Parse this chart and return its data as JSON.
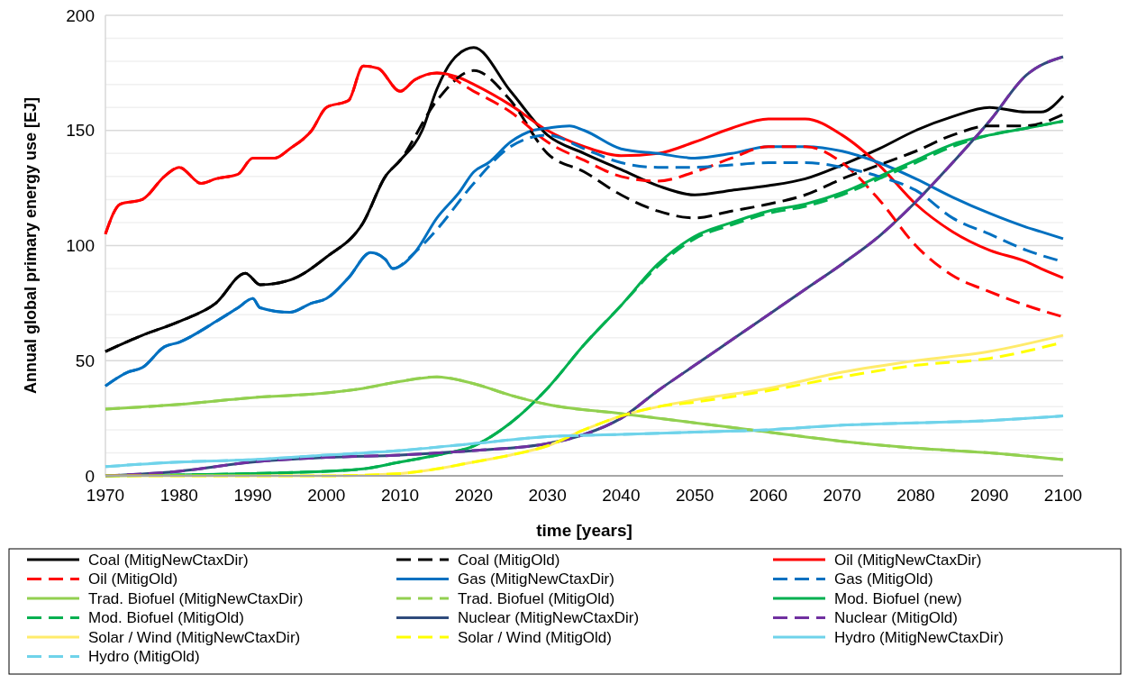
{
  "chart_data": {
    "type": "line",
    "xlabel": "time [years]",
    "ylabel": "Annual global primary energy use [EJ]",
    "xlim": [
      1970,
      2100
    ],
    "xticks": [
      1970,
      1980,
      1990,
      2000,
      2010,
      2020,
      2030,
      2040,
      2050,
      2060,
      2070,
      2080,
      2090,
      2100
    ],
    "ylim": [
      0,
      200
    ],
    "yticks": [
      0,
      {
        "value": 10,
        "label": null
      },
      {
        "value": 20,
        "label": null
      },
      {
        "value": 30,
        "label": null
      },
      {
        "value": 40,
        "label": null
      },
      50,
      {
        "value": 60,
        "label": null
      },
      {
        "value": 70,
        "label": null
      },
      {
        "value": 80,
        "label": null
      },
      {
        "value": 90,
        "label": null
      },
      100,
      {
        "value": 110,
        "label": null
      },
      {
        "value": 120,
        "label": null
      },
      {
        "value": 130,
        "label": null
      },
      {
        "value": 140,
        "label": null
      },
      150,
      {
        "value": 160,
        "label": null
      },
      {
        "value": 170,
        "label": null
      },
      {
        "value": 180,
        "label": null
      },
      {
        "value": 190,
        "label": null
      },
      200
    ],
    "grid": "y",
    "legend": "bottom",
    "series": [
      {
        "name": "Coal (MitigNewCtaxDir)",
        "color": "#000000",
        "line_style": "solid",
        "x": [
          1970,
          1975,
          1980,
          1985,
          1989,
          1991,
          1995,
          2000,
          2005,
          2008,
          2010,
          2013,
          2015,
          2017,
          2020,
          2025,
          2030,
          2035,
          2040,
          2045,
          2050,
          2055,
          2060,
          2065,
          2070,
          2075,
          2080,
          2085,
          2090,
          2095,
          2097,
          2100
        ],
        "values": [
          54,
          61,
          67,
          75,
          88,
          83,
          85,
          95,
          110,
          130,
          137,
          150,
          168,
          180,
          186,
          167,
          148,
          140,
          133,
          126,
          122,
          124,
          126,
          129,
          135,
          142,
          150,
          156,
          160,
          158,
          158,
          165
        ]
      },
      {
        "name": "Coal (MitigOld)",
        "color": "#000000",
        "line_style": "dashed",
        "x": [
          1970,
          1975,
          1980,
          1985,
          1989,
          1991,
          1995,
          2000,
          2005,
          2008,
          2010,
          2015,
          2020,
          2025,
          2030,
          2035,
          2040,
          2045,
          2050,
          2055,
          2060,
          2065,
          2070,
          2075,
          2080,
          2085,
          2090,
          2095,
          2100
        ],
        "values": [
          54,
          61,
          67,
          75,
          88,
          83,
          85,
          95,
          110,
          130,
          137,
          163,
          176,
          163,
          140,
          132,
          122,
          115,
          112,
          115,
          118,
          122,
          129,
          135,
          141,
          148,
          152,
          152,
          157
        ]
      },
      {
        "name": "Oil (MitigNewCtaxDir)",
        "color": "#ff0000",
        "line_style": "solid",
        "x": [
          1970,
          1972,
          1975,
          1978,
          1980,
          1983,
          1985,
          1988,
          1990,
          1993,
          1995,
          1998,
          2000,
          2003,
          2005,
          2007,
          2010,
          2012,
          2015,
          2018,
          2020,
          2025,
          2030,
          2035,
          2040,
          2045,
          2050,
          2055,
          2060,
          2065,
          2070,
          2075,
          2080,
          2085,
          2090,
          2095,
          2097,
          2100
        ],
        "values": [
          105,
          118,
          120,
          130,
          134,
          127,
          129,
          131,
          138,
          138,
          142,
          150,
          160,
          163,
          178,
          177,
          167,
          172,
          175,
          173,
          170,
          161,
          150,
          143,
          139,
          140,
          145,
          151,
          155,
          155,
          148,
          135,
          118,
          106,
          98,
          93,
          90,
          86
        ]
      },
      {
        "name": "Oil (MitigOld)",
        "color": "#ff0000",
        "line_style": "dashed",
        "x": [
          1970,
          1972,
          1975,
          1978,
          1980,
          1983,
          1985,
          1988,
          1990,
          1993,
          1995,
          1998,
          2000,
          2003,
          2005,
          2007,
          2010,
          2012,
          2015,
          2020,
          2025,
          2030,
          2035,
          2040,
          2045,
          2050,
          2055,
          2060,
          2065,
          2070,
          2075,
          2080,
          2085,
          2090,
          2095,
          2100
        ],
        "values": [
          105,
          118,
          120,
          130,
          134,
          127,
          129,
          131,
          138,
          138,
          142,
          150,
          160,
          163,
          178,
          177,
          167,
          172,
          175,
          167,
          158,
          145,
          137,
          130,
          128,
          132,
          138,
          143,
          143,
          136,
          120,
          100,
          87,
          80,
          74,
          69
        ]
      },
      {
        "name": "Gas (MitigNewCtaxDir)",
        "color": "#0070c0",
        "line_style": "solid",
        "x": [
          1970,
          1973,
          1975,
          1978,
          1980,
          1985,
          1988,
          1990,
          1991,
          1995,
          1998,
          2000,
          2003,
          2006,
          2008,
          2009,
          2012,
          2015,
          2018,
          2020,
          2022,
          2025,
          2028,
          2030,
          2033,
          2035,
          2040,
          2045,
          2050,
          2055,
          2060,
          2065,
          2070,
          2075,
          2080,
          2085,
          2090,
          2095,
          2097,
          2100
        ],
        "values": [
          39,
          45,
          47,
          56,
          58,
          67,
          73,
          77,
          73,
          71,
          75,
          77,
          86,
          97,
          94,
          90,
          97,
          112,
          123,
          132,
          136,
          145,
          150,
          151,
          152,
          150,
          142,
          140,
          138,
          140,
          143,
          143,
          141,
          136,
          129,
          121,
          114,
          108,
          106,
          103
        ]
      },
      {
        "name": "Gas (MitigOld)",
        "color": "#0070c0",
        "line_style": "dashed",
        "x": [
          1970,
          1973,
          1975,
          1978,
          1980,
          1985,
          1988,
          1990,
          1991,
          1995,
          1998,
          2000,
          2003,
          2006,
          2008,
          2009,
          2012,
          2015,
          2020,
          2025,
          2030,
          2035,
          2040,
          2045,
          2050,
          2055,
          2060,
          2065,
          2070,
          2075,
          2080,
          2085,
          2090,
          2095,
          2100
        ],
        "values": [
          39,
          45,
          47,
          56,
          58,
          67,
          73,
          77,
          73,
          71,
          75,
          77,
          86,
          97,
          94,
          90,
          97,
          107,
          127,
          143,
          148,
          142,
          136,
          134,
          134,
          135,
          136,
          136,
          134,
          130,
          124,
          112,
          105,
          98,
          93
        ]
      },
      {
        "name": "Trad. Biofuel (MitigNewCtaxDir)",
        "color": "#92d050",
        "line_style": "solid",
        "x": [
          1970,
          1980,
          1990,
          2000,
          2005,
          2010,
          2015,
          2020,
          2025,
          2030,
          2040,
          2050,
          2060,
          2070,
          2080,
          2090,
          2100
        ],
        "values": [
          29,
          31,
          34,
          36,
          38,
          41,
          43,
          40,
          35,
          31,
          27,
          23,
          19,
          15,
          12,
          10,
          7
        ]
      },
      {
        "name": "Trad. Biofuel (MitigOld)",
        "color": "#92d050",
        "line_style": "dashed",
        "x": [
          1970,
          1980,
          1990,
          2000,
          2005,
          2010,
          2015,
          2020,
          2025,
          2030,
          2040,
          2050,
          2060,
          2070,
          2080,
          2090,
          2100
        ],
        "values": [
          29,
          31,
          34,
          36,
          38,
          41,
          43,
          40,
          35,
          31,
          27,
          23,
          19,
          15,
          12,
          10,
          7
        ]
      },
      {
        "name": "Mod. Biofuel (new)",
        "color": "#00b050",
        "line_style": "solid",
        "x": [
          1970,
          1990,
          2000,
          2005,
          2010,
          2015,
          2020,
          2025,
          2030,
          2035,
          2040,
          2045,
          2050,
          2055,
          2060,
          2065,
          2070,
          2075,
          2080,
          2085,
          2090,
          2095,
          2100
        ],
        "values": [
          0,
          1,
          2,
          3,
          6,
          9,
          13,
          23,
          38,
          57,
          74,
          92,
          104,
          110,
          115,
          118,
          123,
          130,
          137,
          144,
          148,
          151,
          154
        ]
      },
      {
        "name": "Mod. Biofuel (MitigOld)",
        "color": "#00b050",
        "line_style": "dashed",
        "x": [
          1970,
          1990,
          2000,
          2005,
          2010,
          2015,
          2020,
          2025,
          2030,
          2035,
          2040,
          2045,
          2050,
          2055,
          2060,
          2065,
          2070,
          2075,
          2080,
          2085,
          2090,
          2095,
          2100
        ],
        "values": [
          0,
          1,
          2,
          3,
          6,
          9,
          13,
          23,
          38,
          57,
          74,
          91,
          103,
          109,
          114,
          117,
          122,
          129,
          136,
          143,
          148,
          151,
          154
        ]
      },
      {
        "name": "Nuclear (MitigNewCtaxDir)",
        "color": "#2f4b7c",
        "line_style": "solid",
        "x": [
          1970,
          1980,
          1990,
          2000,
          2010,
          2020,
          2030,
          2035,
          2040,
          2045,
          2050,
          2055,
          2060,
          2065,
          2070,
          2075,
          2080,
          2085,
          2090,
          2095,
          2100
        ],
        "values": [
          0,
          2,
          6,
          8,
          9,
          11,
          14,
          18,
          25,
          37,
          48,
          59,
          70,
          81,
          92,
          104,
          119,
          136,
          154,
          174,
          182
        ]
      },
      {
        "name": "Nuclear (MitigOld)",
        "color": "#7030a0",
        "line_style": "dashed",
        "x": [
          1970,
          1980,
          1990,
          2000,
          2010,
          2020,
          2030,
          2035,
          2040,
          2045,
          2050,
          2055,
          2060,
          2065,
          2070,
          2075,
          2080,
          2085,
          2090,
          2095,
          2100
        ],
        "values": [
          0,
          2,
          6,
          8,
          9,
          11,
          14,
          18,
          25,
          37,
          48,
          59,
          70,
          81,
          92,
          104,
          119,
          136,
          154,
          174,
          182
        ]
      },
      {
        "name": "Solar / Wind (MitigNewCtaxDir)",
        "color": "#ffeb6b",
        "line_style": "solid",
        "x": [
          1970,
          2000,
          2010,
          2015,
          2020,
          2025,
          2030,
          2035,
          2040,
          2045,
          2050,
          2060,
          2070,
          2080,
          2090,
          2100
        ],
        "values": [
          0,
          0,
          1,
          3,
          6,
          9,
          13,
          20,
          26,
          30,
          33,
          38,
          45,
          50,
          54,
          61
        ]
      },
      {
        "name": "Solar / Wind (MitigOld)",
        "color": "#ffff00",
        "line_style": "dashed",
        "x": [
          1970,
          2000,
          2010,
          2015,
          2020,
          2025,
          2030,
          2035,
          2040,
          2045,
          2050,
          2060,
          2070,
          2080,
          2090,
          2100
        ],
        "values": [
          0,
          0,
          1,
          3,
          6,
          9,
          13,
          20,
          26,
          30,
          32,
          37,
          43,
          48,
          51,
          58
        ]
      },
      {
        "name": "Hydro (MitigNewCtaxDir)",
        "color": "#6fd3ea",
        "line_style": "solid",
        "x": [
          1970,
          1980,
          1990,
          2000,
          2010,
          2020,
          2030,
          2040,
          2050,
          2060,
          2070,
          2080,
          2090,
          2100
        ],
        "values": [
          4,
          6,
          7,
          9,
          11,
          14,
          17,
          18,
          19,
          20,
          22,
          23,
          24,
          26
        ]
      },
      {
        "name": "Hydro (MitigOld)",
        "color": "#6fd3ea",
        "line_style": "dashed",
        "x": [
          1970,
          1980,
          1990,
          2000,
          2010,
          2020,
          2030,
          2040,
          2050,
          2060,
          2070,
          2080,
          2090,
          2100
        ],
        "values": [
          4,
          6,
          7,
          9,
          11,
          14,
          17,
          18,
          19,
          20,
          22,
          23,
          24,
          26
        ]
      }
    ]
  }
}
